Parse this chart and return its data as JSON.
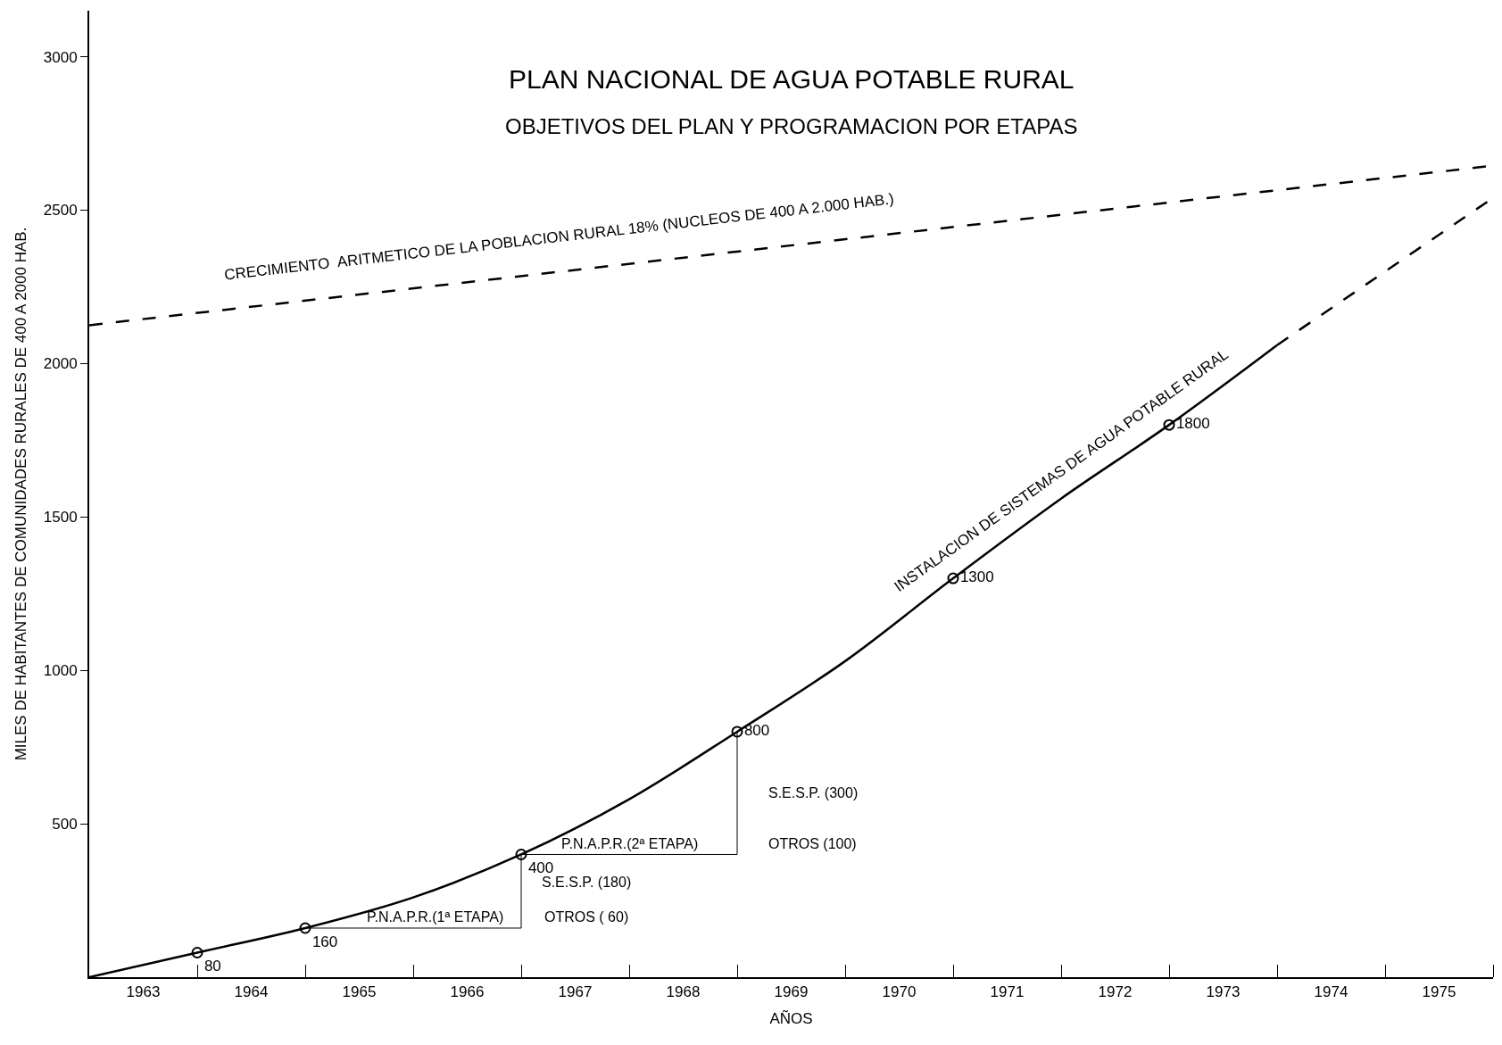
{
  "chart_data": {
    "type": "line",
    "title": "PLAN NACIONAL DE AGUA POTABLE RURAL",
    "subtitle": "OBJETIVOS DEL PLAN Y PROGRAMACION POR ETAPAS",
    "xlabel": "AÑOS",
    "ylabel": "MILES DE HABITANTES DE COMUNIDADES RURALES DE 400 A 2000 HAB.",
    "xlim": [
      1963,
      1976
    ],
    "ylim": [
      0,
      3150
    ],
    "xticks": [
      {
        "value": 1963.5,
        "label": "1963"
      },
      {
        "value": 1964.5,
        "label": "1964"
      },
      {
        "value": 1965.5,
        "label": "1965"
      },
      {
        "value": 1966.5,
        "label": "1966"
      },
      {
        "value": 1967.5,
        "label": "1967"
      },
      {
        "value": 1968.5,
        "label": "1968"
      },
      {
        "value": 1969.5,
        "label": "1969"
      },
      {
        "value": 1970.5,
        "label": "1970"
      },
      {
        "value": 1971.5,
        "label": "1971"
      },
      {
        "value": 1972.5,
        "label": "1972"
      },
      {
        "value": 1973.5,
        "label": "1973"
      },
      {
        "value": 1974.5,
        "label": "1974"
      },
      {
        "value": 1975.5,
        "label": "1975"
      },
      {
        "value": 1964,
        "label": null
      },
      {
        "value": 1965,
        "label": null
      },
      {
        "value": 1966,
        "label": null
      },
      {
        "value": 1967,
        "label": null
      },
      {
        "value": 1968,
        "label": null
      },
      {
        "value": 1969,
        "label": null
      },
      {
        "value": 1970,
        "label": null
      },
      {
        "value": 1971,
        "label": null
      },
      {
        "value": 1972,
        "label": null
      },
      {
        "value": 1973,
        "label": null
      },
      {
        "value": 1974,
        "label": null
      },
      {
        "value": 1975,
        "label": null
      },
      {
        "value": 1976,
        "label": null
      }
    ],
    "yticks": [
      500,
      1000,
      1500,
      2000,
      2500,
      3000
    ],
    "series": [
      {
        "color": "#000000",
        "line_style": "dashed",
        "marker": "none",
        "x": [
          1963,
          1976
        ],
        "values": [
          2125,
          2645
        ]
      },
      {
        "color": "#000000",
        "line_style": "solid",
        "marker": "none",
        "x": [
          1963,
          1964,
          1965,
          1966,
          1967,
          1968,
          1969,
          1970,
          1971,
          1972,
          1973,
          1974
        ],
        "values": [
          0,
          80,
          160,
          260,
          400,
          580,
          800,
          1030,
          1300,
          1560,
          1800,
          2060
        ]
      },
      {
        "color": "#000000",
        "line_style": "dashed",
        "marker": "none",
        "x": [
          1974,
          1975,
          1976
        ],
        "values": [
          2060,
          2300,
          2540
        ]
      },
      {
        "color": "#000000",
        "line_style": "solid",
        "marker": "none",
        "x": [
          1965,
          1967,
          1967
        ],
        "values": [
          160,
          160,
          400
        ]
      },
      {
        "color": "#000000",
        "line_style": "solid",
        "marker": "none",
        "x": [
          1967,
          1969,
          1969
        ],
        "values": [
          400,
          400,
          800
        ]
      },
      {
        "type": "scatter",
        "color": "#000000",
        "marker": "circle",
        "data_labels": true,
        "x": [
          1964,
          1965,
          1967,
          1969,
          1971,
          1973
        ],
        "values": [
          80,
          160,
          400,
          800,
          1300,
          1800
        ]
      }
    ],
    "annotations": [
      "CRECIMIENTO  ARITMETICO DE LA POBLACION RURAL 18% (NUCLEOS DE 400 A 2.000 HAB.)",
      "INSTALACION DE SISTEMAS DE AGUA POTABLE RURAL",
      "P.N.A.P.R.(1ª ETAPA)",
      "OTROS ( 60)",
      "S.E.S.P. (180)",
      "P.N.A.P.R.(2ª ETAPA)",
      "OTROS (100)",
      "S.E.S.P. (300)"
    ]
  }
}
